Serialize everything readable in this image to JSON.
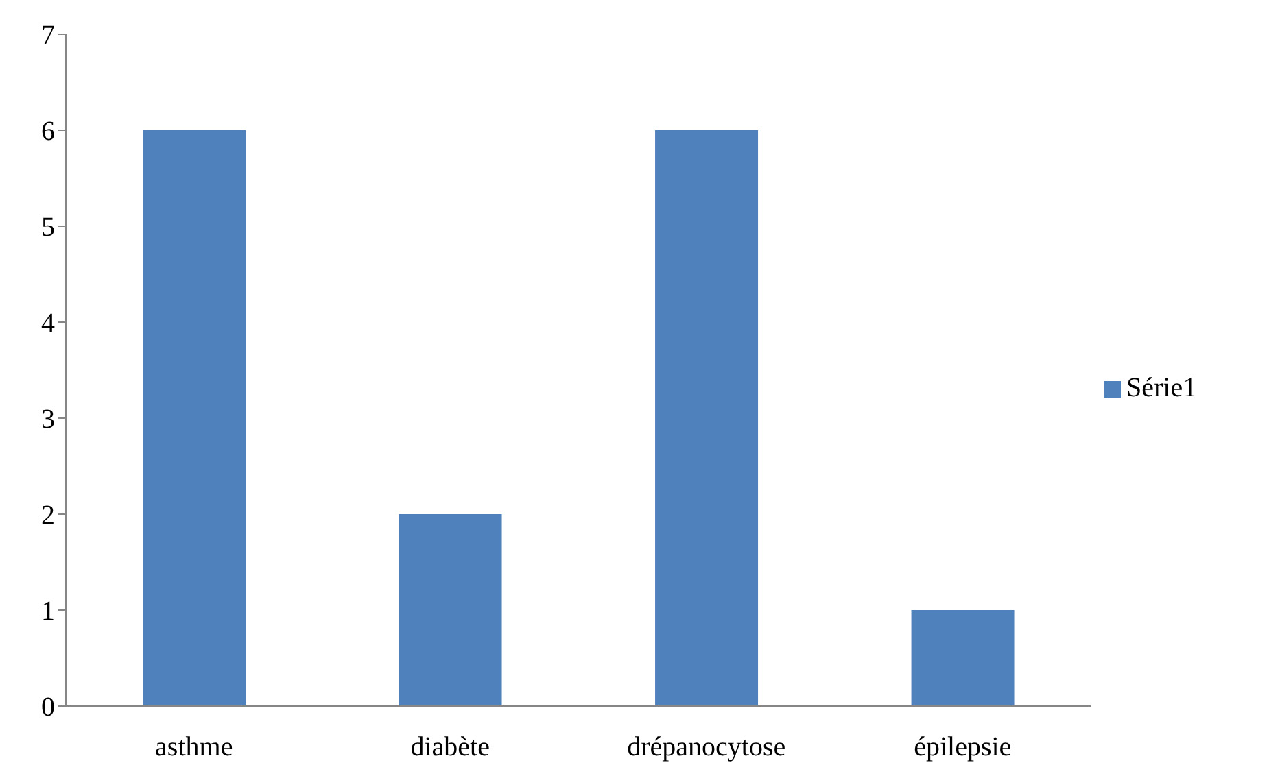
{
  "chart_data": {
    "type": "bar",
    "categories": [
      "asthme",
      "diabète",
      "drépanocytose",
      "épilepsie"
    ],
    "series": [
      {
        "name": "Série1",
        "color": "#4f81bd",
        "values": [
          6,
          2,
          6,
          1
        ]
      }
    ],
    "ylim": [
      0,
      7
    ],
    "yticks": [
      0,
      1,
      2,
      3,
      4,
      5,
      6,
      7
    ],
    "legend": "right"
  }
}
